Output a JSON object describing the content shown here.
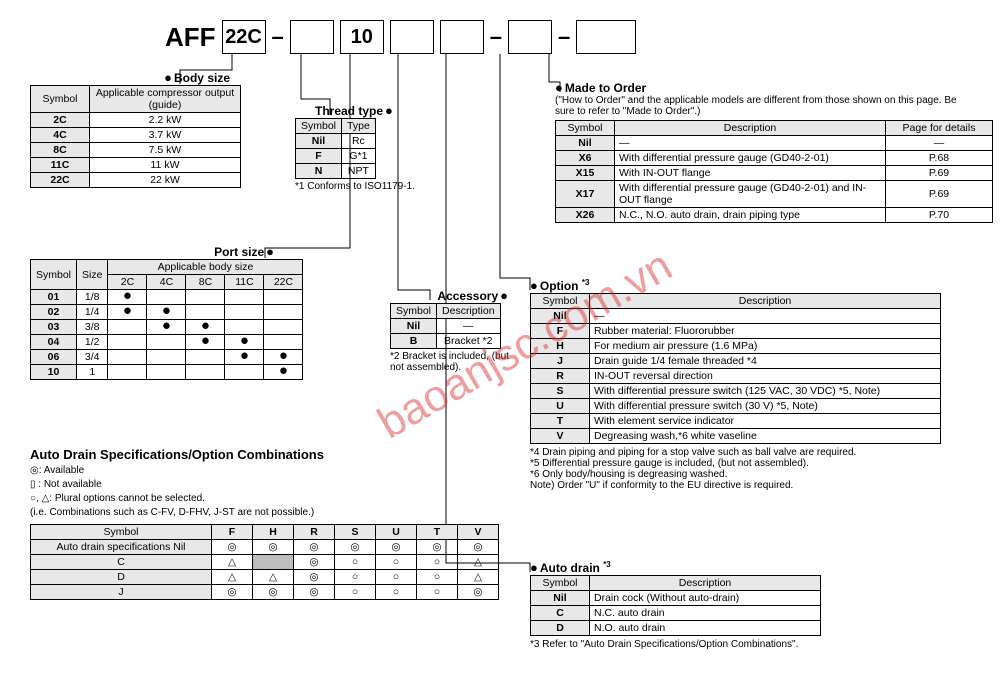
{
  "partNumber": {
    "prefix": "AFF",
    "b1": "22C",
    "b2": "10"
  },
  "bodySize": {
    "title": "Body size",
    "head": [
      "Symbol",
      "Applicable compressor output (guide)"
    ],
    "rows": [
      [
        "2C",
        "2.2 kW"
      ],
      [
        "4C",
        "3.7 kW"
      ],
      [
        "8C",
        "7.5 kW"
      ],
      [
        "11C",
        "11 kW"
      ],
      [
        "22C",
        "22 kW"
      ]
    ]
  },
  "threadType": {
    "title": "Thread type",
    "head": [
      "Symbol",
      "Type"
    ],
    "rows": [
      [
        "Nil",
        "Rc"
      ],
      [
        "F",
        "G*1"
      ],
      [
        "N",
        "NPT"
      ]
    ],
    "note": "*1 Conforms to ISO1179-1."
  },
  "portSize": {
    "title": "Port size",
    "head1": [
      "Symbol",
      "Size",
      "Applicable body size"
    ],
    "cols": [
      "2C",
      "4C",
      "8C",
      "11C",
      "22C"
    ],
    "rows": [
      {
        "s": "01",
        "sz": "1/8",
        "m": [
          1,
          0,
          0,
          0,
          0
        ]
      },
      {
        "s": "02",
        "sz": "1/4",
        "m": [
          1,
          1,
          0,
          0,
          0
        ]
      },
      {
        "s": "03",
        "sz": "3/8",
        "m": [
          0,
          1,
          1,
          0,
          0
        ]
      },
      {
        "s": "04",
        "sz": "1/2",
        "m": [
          0,
          0,
          1,
          1,
          0
        ]
      },
      {
        "s": "06",
        "sz": "3/4",
        "m": [
          0,
          0,
          0,
          1,
          1
        ]
      },
      {
        "s": "10",
        "sz": "1",
        "m": [
          0,
          0,
          0,
          0,
          1
        ]
      }
    ]
  },
  "accessory": {
    "title": "Accessory",
    "head": [
      "Symbol",
      "Description"
    ],
    "rows": [
      [
        "Nil",
        "—"
      ],
      [
        "B",
        "Bracket *2"
      ]
    ],
    "note": "*2 Bracket is included, (but not assembled)."
  },
  "madeToOrder": {
    "title": "Made to Order",
    "sub": "(\"How to Order\" and the applicable models are different from those shown on this page. Be sure to refer to \"Made to Order\".)",
    "head": [
      "Symbol",
      "Description",
      "Page for details"
    ],
    "rows": [
      [
        "Nil",
        "—",
        "—"
      ],
      [
        "X6",
        "With differential pressure gauge (GD40-2-01)",
        "P.68"
      ],
      [
        "X15",
        "With IN-OUT flange",
        "P.69"
      ],
      [
        "X17",
        "With differential pressure gauge (GD40-2-01) and IN-OUT flange",
        "P.69"
      ],
      [
        "X26",
        "N.C., N.O. auto drain, drain piping type",
        "P.70"
      ]
    ]
  },
  "option": {
    "title": "Option *3",
    "head": [
      "Symbol",
      "Description"
    ],
    "rows": [
      [
        "Nil",
        "—"
      ],
      [
        "F",
        "Rubber material: Fluororubber"
      ],
      [
        "H",
        "For medium air pressure (1.6 MPa)"
      ],
      [
        "J",
        "Drain guide 1/4 female threaded *4"
      ],
      [
        "R",
        "IN-OUT reversal direction"
      ],
      [
        "S",
        "With differential pressure switch (125 VAC, 30 VDC) *5, Note)"
      ],
      [
        "U",
        "With differential pressure switch (30 V) *5, Note)"
      ],
      [
        "T",
        "With element service indicator"
      ],
      [
        "V",
        "Degreasing wash,*6 white vaseline"
      ]
    ],
    "notes": [
      "*4 Drain piping and piping for a stop valve such as ball valve are required.",
      "*5 Differential pressure gauge is included, (but not assembled).",
      "*6 Only body/housing is degreasing washed.",
      "Note) Order \"U\" if conformity to the EU directive is required."
    ]
  },
  "autoDrain": {
    "title": "Auto drain *3",
    "head": [
      "Symbol",
      "Description"
    ],
    "rows": [
      [
        "Nil",
        "Drain cock (Without auto-drain)"
      ],
      [
        "C",
        "N.C. auto drain"
      ],
      [
        "D",
        "N.O. auto drain"
      ]
    ],
    "note": "*3 Refer to \"Auto Drain Specifications/Option Combinations\"."
  },
  "combo": {
    "title": "Auto Drain Specifications/Option Combinations",
    "legend": [
      "◎: Available",
      "▯ : Not available",
      "○, △: Plural options cannot be selected.",
      "(i.e. Combinations such as C-FV, D-FHV, J-ST are not possible.)"
    ],
    "cols": [
      "F",
      "H",
      "R",
      "S",
      "U",
      "T",
      "V"
    ],
    "rowHead": [
      "Symbol",
      "Auto drain specifications Nil",
      "C",
      "D",
      "J"
    ],
    "grid": [
      [
        "◎",
        "◎",
        "◎",
        "◎",
        "◎",
        "◎",
        "◎"
      ],
      [
        "△",
        "▯",
        "◎",
        "○",
        "○",
        "○",
        "△"
      ],
      [
        "△",
        "△",
        "◎",
        "○",
        "○",
        "○",
        "△"
      ],
      [
        "◎",
        "◎",
        "◎",
        "○",
        "○",
        "○",
        "◎"
      ]
    ]
  },
  "watermark": "baoanjsc.com.vn"
}
